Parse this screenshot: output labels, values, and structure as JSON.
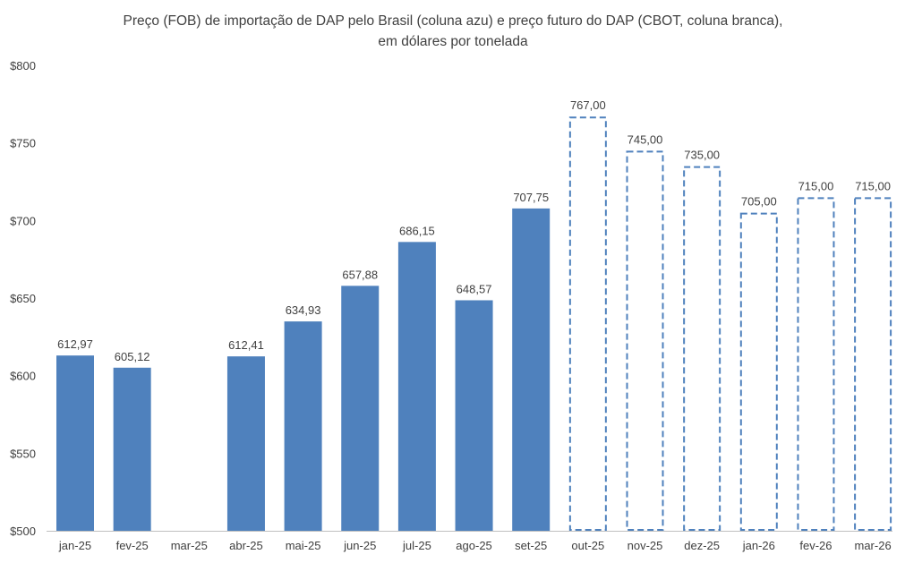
{
  "chart_data": {
    "type": "bar",
    "title": [
      "Preço (FOB) de importação de DAP pelo Brasil (coluna azu) e preço futuro do DAP (CBOT, coluna branca),",
      "em dólares por tonelada"
    ],
    "xlabel": "",
    "ylabel": "",
    "ylim": [
      500,
      800
    ],
    "yticks": [
      500,
      550,
      600,
      650,
      700,
      750,
      800
    ],
    "ytick_labels": [
      "$500",
      "$550",
      "$600",
      "$650",
      "$700",
      "$750",
      "$800"
    ],
    "categories": [
      "jan-25",
      "fev-25",
      "mar-25",
      "abr-25",
      "mai-25",
      "jun-25",
      "jul-25",
      "ago-25",
      "set-25",
      "out-25",
      "nov-25",
      "dez-25",
      "jan-26",
      "fev-26",
      "mar-26"
    ],
    "series": [
      {
        "style": "filled",
        "color": "#4F81BD",
        "values": [
          612.97,
          605.12,
          null,
          612.41,
          634.93,
          657.88,
          686.15,
          648.57,
          707.75,
          null,
          null,
          null,
          null,
          null,
          null
        ],
        "labels": [
          "612,97",
          "605,12",
          null,
          "612,41",
          "634,93",
          "657,88",
          "686,15",
          "648,57",
          "707,75",
          null,
          null,
          null,
          null,
          null,
          null
        ]
      },
      {
        "style": "dashed-outline",
        "color": "#4F81BD",
        "values": [
          null,
          null,
          null,
          null,
          null,
          null,
          null,
          null,
          null,
          767,
          745,
          735,
          705,
          715,
          715
        ],
        "labels": [
          null,
          null,
          null,
          null,
          null,
          null,
          null,
          null,
          null,
          "767,00",
          "745,00",
          "735,00",
          "705,00",
          "715,00",
          "715,00"
        ]
      }
    ],
    "grid": false,
    "legend": "none"
  }
}
